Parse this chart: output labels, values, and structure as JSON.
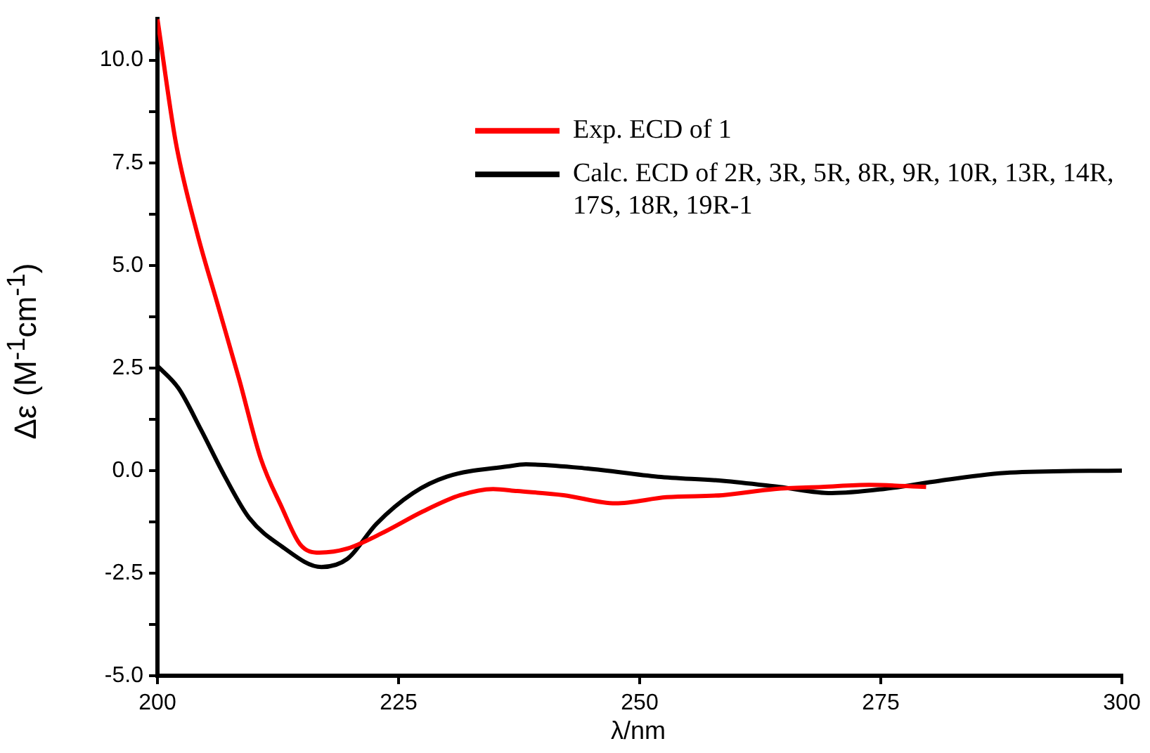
{
  "chart_data": {
    "type": "line",
    "xlabel": "λ/nm",
    "ylabel": "Δε (M$^{-1}$cm$^{-1}$)",
    "xlim": [
      200,
      300
    ],
    "xticks": [
      200,
      225,
      250,
      275,
      300
    ],
    "ylim": [
      -5,
      11
    ],
    "yticks": [
      {
        "value": -5,
        "label": "-5.0"
      },
      {
        "value": -3.75,
        "label": null
      },
      {
        "value": -2.5,
        "label": "-2.5"
      },
      {
        "value": -1.25,
        "label": null
      },
      {
        "value": 0,
        "label": "0.0"
      },
      {
        "value": 1.25,
        "label": null
      },
      {
        "value": 2.5,
        "label": "2.5"
      },
      {
        "value": 3.75,
        "label": null
      },
      {
        "value": 5,
        "label": "5.0"
      },
      {
        "value": 6.25,
        "label": null
      },
      {
        "value": 7.5,
        "label": "7.5"
      },
      {
        "value": 8.75,
        "label": null
      },
      {
        "value": 10,
        "label": "10.0"
      }
    ],
    "grid": false,
    "legend": "top right",
    "line_style": "solid",
    "marker": "none",
    "series": [
      {
        "name": "Exp. ECD of 1",
        "color": "#ff0000",
        "x": [
          200,
          201.9,
          204.1,
          206.3,
          208.5,
          210.7,
          212.9,
          214.8,
          216.8,
          219.7,
          223.5,
          227.5,
          231.4,
          234.8,
          237.3,
          242.1,
          247.5,
          252.8,
          258.6,
          264,
          268.9,
          273.8,
          279.7
        ],
        "values": [
          11.0,
          8.0,
          5.8,
          4.0,
          2.2,
          0.3,
          -0.9,
          -1.8,
          -2.0,
          -1.9,
          -1.5,
          -1.0,
          -0.6,
          -0.45,
          -0.5,
          -0.6,
          -0.8,
          -0.65,
          -0.6,
          -0.45,
          -0.4,
          -0.35,
          -0.4
        ]
      },
      {
        "name": "Calc. ECD of 2R, 3R, 5R, 8R, 9R, 10R, 13R, 14R, 17S, 18R, 19R-1",
        "color": "#000000",
        "x": [
          200,
          202.2,
          204.5,
          207,
          209.5,
          212.9,
          217,
          219.7,
          222.7,
          226.5,
          230,
          236.3,
          238.2,
          244.6,
          251.9,
          258.6,
          264.5,
          269.9,
          275.3,
          281.1,
          288.4,
          300
        ],
        "values": [
          2.55,
          2.0,
          1.0,
          -0.15,
          -1.15,
          -1.85,
          -2.35,
          -2.15,
          -1.3,
          -0.55,
          -0.15,
          0.1,
          0.15,
          0.05,
          -0.15,
          -0.25,
          -0.4,
          -0.55,
          -0.45,
          -0.25,
          -0.05,
          0
        ]
      }
    ]
  }
}
